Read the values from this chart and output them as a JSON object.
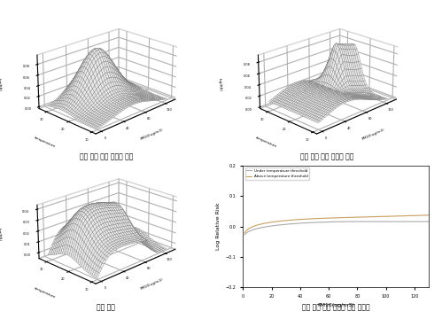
{
  "subplot_labels": [
    "기온 역치 수준 이상의 범위",
    "기온 역치 수준 미만의 범위",
    "전체 범위",
    "기온 역치 수준 구분에 따른 관련성"
  ],
  "ylabel2d": "Log Relative Risk",
  "xlabel2d": "PM10(ug/m3)",
  "legend_labels": [
    "Under temperature threshold",
    "Above temperature threshold"
  ],
  "line_color_under": "#aaaaaa",
  "line_color_above": "#c8a060",
  "background_color": "#ffffff",
  "surface_color": "#e8e8e8",
  "surface_edgecolor": "#666666"
}
